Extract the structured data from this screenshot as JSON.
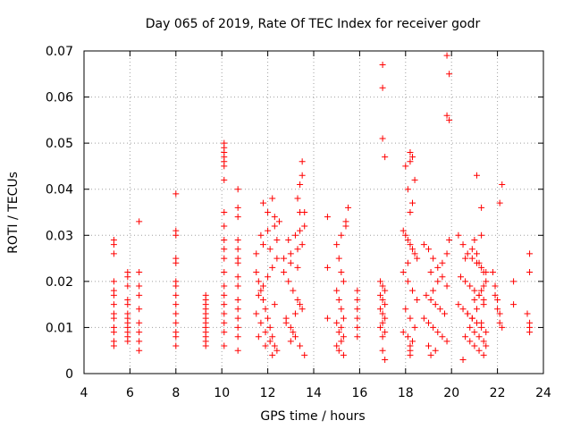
{
  "chart_data": {
    "type": "scatter",
    "title": "Day 065 of 2019, Rate Of TEC Index for receiver godr",
    "xlabel": "GPS time / hours",
    "ylabel": "ROTI / TECUs",
    "xlim": [
      4,
      24
    ],
    "ylim": [
      0,
      0.07
    ],
    "xticks": [
      "4",
      "6",
      "8",
      "10",
      "12",
      "14",
      "16",
      "18",
      "20",
      "22",
      "24"
    ],
    "yticks": [
      "0",
      "0.01",
      "0.02",
      "0.03",
      "0.04",
      "0.05",
      "0.06",
      "0.07"
    ],
    "grid": true,
    "marker": "+",
    "color": "#ff0000",
    "series": [
      {
        "name": "ROTI",
        "x": [
          5.3,
          5.3,
          5.3,
          5.3,
          5.3,
          5.3,
          5.3,
          5.3,
          5.3,
          5.3,
          5.3,
          5.3,
          5.3,
          5.9,
          5.9,
          5.9,
          5.9,
          5.9,
          5.9,
          5.9,
          5.9,
          5.9,
          5.9,
          5.9,
          5.9,
          6.4,
          6.4,
          6.4,
          6.4,
          6.4,
          6.4,
          6.4,
          6.4,
          6.4,
          8.0,
          8.0,
          8.0,
          8.0,
          8.0,
          8.0,
          8.0,
          8.0,
          8.0,
          8.0,
          8.0,
          8.0,
          8.0,
          8.0,
          9.3,
          9.3,
          9.3,
          9.3,
          9.3,
          9.3,
          9.3,
          9.3,
          9.3,
          9.3,
          9.3,
          9.3,
          10.1,
          10.1,
          10.1,
          10.1,
          10.1,
          10.1,
          10.1,
          10.1,
          10.1,
          10.1,
          10.1,
          10.1,
          10.1,
          10.1,
          10.1,
          10.1,
          10.1,
          10.1,
          10.1,
          10.1,
          10.7,
          10.7,
          10.7,
          10.7,
          10.7,
          10.7,
          10.7,
          10.7,
          10.7,
          10.7,
          10.7,
          10.7,
          10.7,
          10.7,
          10.7,
          11.5,
          11.6,
          11.7,
          11.8,
          11.9,
          12.0,
          12.1,
          12.2,
          12.3,
          12.4,
          11.5,
          11.7,
          11.9,
          12.1,
          12.3,
          11.6,
          11.8,
          12.0,
          12.2,
          12.4,
          11.5,
          11.8,
          12.1,
          12.4,
          11.7,
          12.0,
          12.3,
          11.6,
          11.9,
          12.2,
          12.0,
          12.2,
          11.8,
          12.3,
          12.5,
          12.7,
          12.9,
          13.1,
          13.3,
          13.5,
          12.8,
          13.0,
          13.2,
          13.4,
          13.6,
          12.7,
          13.0,
          13.3,
          13.5,
          12.9,
          13.2,
          13.4,
          13.6,
          13.0,
          13.3,
          13.4,
          13.5,
          13.5,
          13.3,
          13.4,
          13.6,
          12.8,
          13.1,
          13.0,
          13.2,
          13.4,
          14.6,
          14.6,
          14.6,
          15.0,
          15.1,
          15.2,
          15.3,
          15.0,
          15.1,
          15.2,
          15.3,
          15.0,
          15.2,
          15.1,
          15.3,
          15.2,
          15.0,
          15.1,
          15.3,
          15.2,
          15.4,
          15.4,
          15.5,
          15.9,
          15.9,
          15.9,
          15.9,
          15.9,
          15.9,
          16.9,
          17.0,
          17.1,
          16.9,
          17.0,
          17.1,
          16.9,
          17.0,
          17.1,
          17.0,
          16.9,
          17.1,
          17.0,
          17.0,
          17.1,
          17.1,
          17.0,
          17.0,
          17.0,
          17.9,
          18.0,
          18.1,
          18.2,
          18.3,
          18.4,
          18.5,
          17.9,
          18.1,
          18.3,
          18.5,
          18.0,
          18.2,
          18.4,
          17.9,
          18.1,
          18.3,
          18.2,
          18.2,
          18.2,
          18.2,
          18.3,
          18.1,
          18.4,
          18.0,
          18.2,
          18.3,
          18.2,
          18.1,
          18.8,
          19.0,
          19.2,
          19.4,
          19.6,
          19.8,
          18.9,
          19.1,
          19.3,
          19.5,
          19.7,
          18.8,
          19.0,
          19.2,
          19.4,
          19.6,
          19.8,
          19.0,
          19.3,
          19.1,
          19.2,
          19.4,
          19.1,
          19.6,
          19.8,
          19.9,
          19.9,
          19.8,
          19.9,
          19.8,
          20.3,
          20.5,
          20.7,
          20.9,
          21.1,
          21.3,
          21.5,
          20.4,
          20.6,
          20.8,
          21.0,
          21.2,
          21.4,
          20.3,
          20.5,
          20.7,
          20.9,
          21.1,
          21.3,
          21.5,
          20.6,
          20.8,
          21.0,
          21.2,
          21.4,
          20.5,
          20.9,
          21.3,
          20.7,
          21.1,
          21.4,
          21.0,
          21.2,
          21.3,
          21.4,
          21.5,
          21.3,
          20.9,
          21.1,
          21.2,
          21.4,
          20.8,
          21.0,
          21.2,
          21.4,
          21.5,
          21.1,
          21.3,
          20.6,
          21.0,
          21.8,
          21.9,
          22.0,
          22.1,
          22.2,
          21.9,
          22.0,
          22.1,
          22.1,
          22.2,
          22.7,
          22.7,
          23.3,
          23.4,
          23.4,
          23.4,
          23.4,
          23.4
        ],
        "y": [
          0.029,
          0.028,
          0.026,
          0.02,
          0.018,
          0.017,
          0.015,
          0.013,
          0.012,
          0.01,
          0.009,
          0.007,
          0.006,
          0.022,
          0.021,
          0.019,
          0.016,
          0.015,
          0.013,
          0.012,
          0.011,
          0.01,
          0.009,
          0.008,
          0.007,
          0.033,
          0.022,
          0.019,
          0.017,
          0.014,
          0.011,
          0.009,
          0.007,
          0.005,
          0.039,
          0.031,
          0.03,
          0.025,
          0.024,
          0.02,
          0.019,
          0.017,
          0.015,
          0.013,
          0.011,
          0.009,
          0.008,
          0.006,
          0.017,
          0.016,
          0.015,
          0.014,
          0.013,
          0.012,
          0.011,
          0.01,
          0.009,
          0.008,
          0.007,
          0.006,
          0.05,
          0.049,
          0.048,
          0.047,
          0.046,
          0.045,
          0.042,
          0.035,
          0.032,
          0.029,
          0.027,
          0.025,
          0.022,
          0.019,
          0.017,
          0.015,
          0.013,
          0.011,
          0.009,
          0.006,
          0.04,
          0.036,
          0.034,
          0.029,
          0.027,
          0.025,
          0.024,
          0.021,
          0.019,
          0.016,
          0.014,
          0.012,
          0.01,
          0.008,
          0.005,
          0.022,
          0.02,
          0.018,
          0.016,
          0.014,
          0.012,
          0.01,
          0.008,
          0.006,
          0.005,
          0.013,
          0.011,
          0.009,
          0.007,
          0.015,
          0.017,
          0.019,
          0.021,
          0.023,
          0.025,
          0.026,
          0.028,
          0.027,
          0.029,
          0.03,
          0.031,
          0.032,
          0.008,
          0.006,
          0.004,
          0.035,
          0.038,
          0.037,
          0.034,
          0.033,
          0.022,
          0.02,
          0.018,
          0.016,
          0.014,
          0.012,
          0.01,
          0.008,
          0.006,
          0.004,
          0.025,
          0.026,
          0.027,
          0.028,
          0.029,
          0.03,
          0.031,
          0.032,
          0.024,
          0.023,
          0.041,
          0.043,
          0.046,
          0.038,
          0.035,
          0.035,
          0.011,
          0.009,
          0.007,
          0.013,
          0.015,
          0.034,
          0.023,
          0.012,
          0.028,
          0.025,
          0.022,
          0.02,
          0.018,
          0.016,
          0.014,
          0.012,
          0.011,
          0.01,
          0.009,
          0.008,
          0.007,
          0.006,
          0.005,
          0.004,
          0.03,
          0.032,
          0.033,
          0.036,
          0.018,
          0.016,
          0.014,
          0.012,
          0.01,
          0.008,
          0.02,
          0.019,
          0.018,
          0.017,
          0.016,
          0.015,
          0.014,
          0.013,
          0.012,
          0.011,
          0.01,
          0.009,
          0.008,
          0.005,
          0.003,
          0.047,
          0.051,
          0.062,
          0.067,
          0.031,
          0.03,
          0.029,
          0.028,
          0.027,
          0.026,
          0.025,
          0.022,
          0.02,
          0.018,
          0.016,
          0.014,
          0.012,
          0.01,
          0.009,
          0.008,
          0.007,
          0.006,
          0.005,
          0.004,
          0.035,
          0.037,
          0.04,
          0.042,
          0.045,
          0.046,
          0.047,
          0.048,
          0.024,
          0.028,
          0.027,
          0.025,
          0.023,
          0.021,
          0.019,
          0.017,
          0.016,
          0.015,
          0.014,
          0.013,
          0.012,
          0.011,
          0.01,
          0.009,
          0.008,
          0.007,
          0.006,
          0.005,
          0.004,
          0.018,
          0.02,
          0.022,
          0.024,
          0.026,
          0.029,
          0.055,
          0.056,
          0.065,
          0.069,
          0.03,
          0.028,
          0.026,
          0.025,
          0.024,
          0.023,
          0.022,
          0.021,
          0.02,
          0.019,
          0.018,
          0.017,
          0.016,
          0.015,
          0.014,
          0.013,
          0.012,
          0.011,
          0.01,
          0.009,
          0.008,
          0.007,
          0.006,
          0.005,
          0.004,
          0.003,
          0.012,
          0.011,
          0.013,
          0.014,
          0.015,
          0.016,
          0.017,
          0.018,
          0.019,
          0.02,
          0.03,
          0.027,
          0.026,
          0.024,
          0.022,
          0.01,
          0.009,
          0.008,
          0.007,
          0.006,
          0.043,
          0.036,
          0.025,
          0.029,
          0.022,
          0.019,
          0.016,
          0.013,
          0.01,
          0.017,
          0.014,
          0.011,
          0.037,
          0.041,
          0.02,
          0.015,
          0.013,
          0.011,
          0.01,
          0.009,
          0.026,
          0.022
        ]
      }
    ]
  }
}
